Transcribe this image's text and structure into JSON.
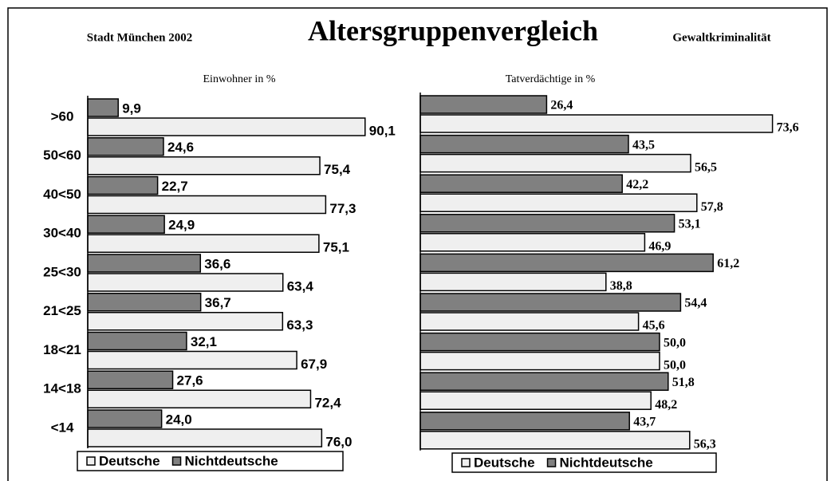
{
  "header": {
    "left": "Stadt München 2002",
    "title": "Altersgruppenvergleich",
    "right": "Gewaltkriminalität"
  },
  "chart_data": [
    {
      "type": "bar",
      "orientation": "horizontal",
      "subtitle": "Einwohner in %",
      "categories": [
        ">60",
        "50<60",
        "40<50",
        "30<40",
        "25<30",
        "21<25",
        "18<21",
        "14<18",
        "<14"
      ],
      "xlim": [
        0,
        100
      ],
      "series": [
        {
          "name": "Deutsche",
          "color": "#efefef",
          "values": [
            90.1,
            75.4,
            77.3,
            75.1,
            63.4,
            63.3,
            67.9,
            72.4,
            76.0
          ],
          "value_labels": [
            "90,1",
            "75,4",
            "77,3",
            "75,1",
            "63,4",
            "63,3",
            "67,9",
            "72,4",
            "76,0"
          ]
        },
        {
          "name": "Nichtdeutsche",
          "color": "#808080",
          "values": [
            9.9,
            24.6,
            22.7,
            24.9,
            36.6,
            36.7,
            32.1,
            27.6,
            24.0
          ],
          "value_labels": [
            "9,9",
            "24,6",
            "22,7",
            "24,9",
            "36,6",
            "36,7",
            "32,1",
            "27,6",
            "24,0"
          ]
        }
      ]
    },
    {
      "type": "bar",
      "orientation": "horizontal",
      "subtitle": "Tatverdächtige in %",
      "xlim": [
        0,
        80
      ],
      "series": [
        {
          "name": "Deutsche",
          "color": "#efefef",
          "values": [
            73.6,
            56.5,
            57.8,
            46.9,
            38.8,
            45.6,
            50.0,
            48.2,
            56.3
          ],
          "value_labels": [
            "73,6",
            "56,5",
            "57,8",
            "46,9",
            "38,8",
            "45,6",
            "50,0",
            "48,2",
            "56,3"
          ]
        },
        {
          "name": "Nichtdeutsche",
          "color": "#808080",
          "values": [
            26.4,
            43.5,
            42.2,
            53.1,
            61.2,
            54.4,
            50.0,
            51.8,
            43.7
          ],
          "value_labels": [
            "26,4",
            "43,5",
            "42,2",
            "53,1",
            "61,2",
            "54,4",
            "50,0",
            "51,8",
            "43,7"
          ]
        }
      ]
    }
  ]
}
